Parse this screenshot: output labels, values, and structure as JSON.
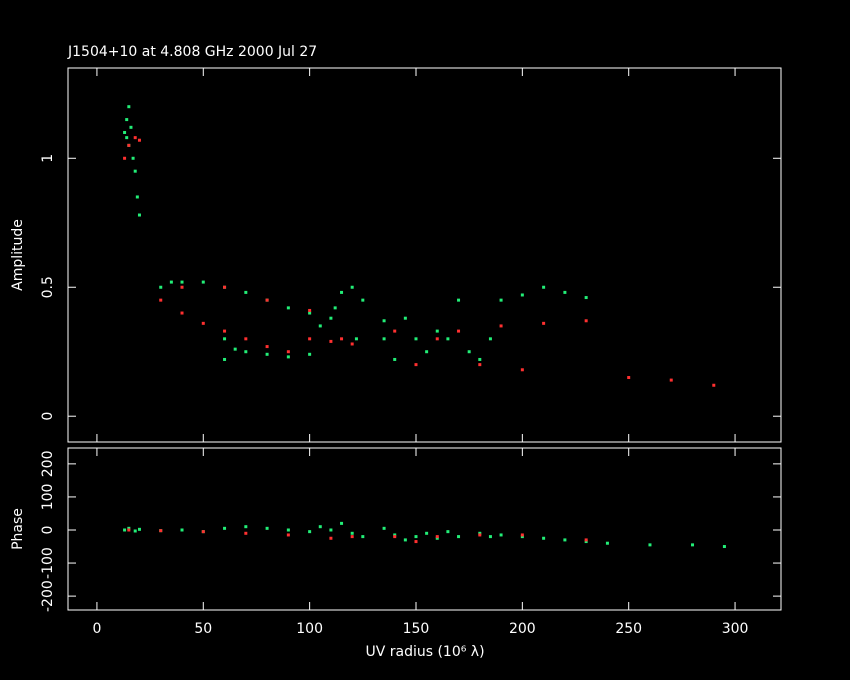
{
  "chart_data": [
    {
      "type": "scatter",
      "title": "J1504+10 at 4.808 GHz 2000 Jul 27",
      "ylabel": "Amplitude",
      "xlim": [
        -13.6,
        321.6
      ],
      "xticks": [
        0,
        50,
        100,
        150,
        200,
        250,
        300
      ],
      "ylim": [
        -0.1,
        1.35
      ],
      "yticks": [
        0,
        0.5,
        1
      ],
      "series": [
        {
          "color": "#22ee77",
          "x": [
            13,
            14,
            15,
            15,
            16,
            17,
            18,
            19,
            20,
            14,
            30,
            35,
            40,
            50,
            60,
            70,
            80,
            90,
            100,
            60,
            70,
            80,
            90,
            100,
            105,
            110,
            112,
            115,
            120,
            125,
            122,
            135,
            135,
            140,
            145,
            150,
            155,
            160,
            165,
            175,
            180,
            185,
            190,
            200,
            210,
            220,
            230,
            170,
            60,
            65
          ],
          "values": [
            1.1,
            1.15,
            1.2,
            1.05,
            1.12,
            1.0,
            0.95,
            0.85,
            0.78,
            1.08,
            0.5,
            0.52,
            0.52,
            0.52,
            0.5,
            0.48,
            0.45,
            0.42,
            0.4,
            0.22,
            0.25,
            0.24,
            0.23,
            0.24,
            0.35,
            0.38,
            0.42,
            0.48,
            0.5,
            0.45,
            0.3,
            0.37,
            0.3,
            0.22,
            0.38,
            0.3,
            0.25,
            0.33,
            0.3,
            0.25,
            0.22,
            0.3,
            0.45,
            0.47,
            0.5,
            0.48,
            0.46,
            0.45,
            0.3,
            0.26
          ]
        },
        {
          "color": "#ff3030",
          "x": [
            13,
            15,
            18,
            20,
            30,
            40,
            50,
            60,
            70,
            80,
            90,
            100,
            110,
            115,
            120,
            140,
            150,
            160,
            170,
            190,
            210,
            230,
            40,
            60,
            80,
            100,
            180,
            200,
            250,
            270,
            290
          ],
          "values": [
            1.0,
            1.05,
            1.08,
            1.07,
            0.45,
            0.4,
            0.36,
            0.33,
            0.3,
            0.27,
            0.25,
            0.3,
            0.29,
            0.3,
            0.28,
            0.33,
            0.2,
            0.3,
            0.33,
            0.35,
            0.36,
            0.37,
            0.5,
            0.5,
            0.45,
            0.41,
            0.2,
            0.18,
            0.15,
            0.14,
            0.12
          ]
        }
      ]
    },
    {
      "type": "scatter",
      "ylabel": "Phase",
      "xlabel": "UV radius  (10⁶ λ)",
      "xlim": [
        -13.6,
        321.6
      ],
      "xticks": [
        0,
        50,
        100,
        150,
        200,
        250,
        300
      ],
      "ylim": [
        -242,
        248
      ],
      "yticks": [
        -200,
        -100,
        0,
        100,
        200
      ],
      "series": [
        {
          "color": "#22ee77",
          "x": [
            13,
            15,
            18,
            20,
            30,
            40,
            50,
            60,
            70,
            80,
            90,
            100,
            105,
            110,
            115,
            120,
            125,
            135,
            140,
            145,
            150,
            155,
            160,
            165,
            170,
            180,
            185,
            190,
            200,
            210,
            220,
            230,
            240,
            260,
            280,
            295
          ],
          "values": [
            0,
            5,
            -3,
            2,
            -2,
            0,
            -5,
            5,
            10,
            5,
            0,
            -5,
            10,
            0,
            20,
            -10,
            -20,
            5,
            -15,
            -30,
            -20,
            -10,
            -25,
            -5,
            -20,
            -10,
            -20,
            -15,
            -20,
            -25,
            -30,
            -35,
            -40,
            -45,
            -45,
            -50
          ]
        },
        {
          "color": "#ff3030",
          "x": [
            15,
            30,
            50,
            70,
            90,
            110,
            120,
            140,
            150,
            160,
            180,
            200,
            230
          ],
          "values": [
            0,
            -2,
            -5,
            -10,
            -15,
            -25,
            -20,
            -20,
            -35,
            -20,
            -15,
            -15,
            -30
          ]
        }
      ]
    }
  ]
}
